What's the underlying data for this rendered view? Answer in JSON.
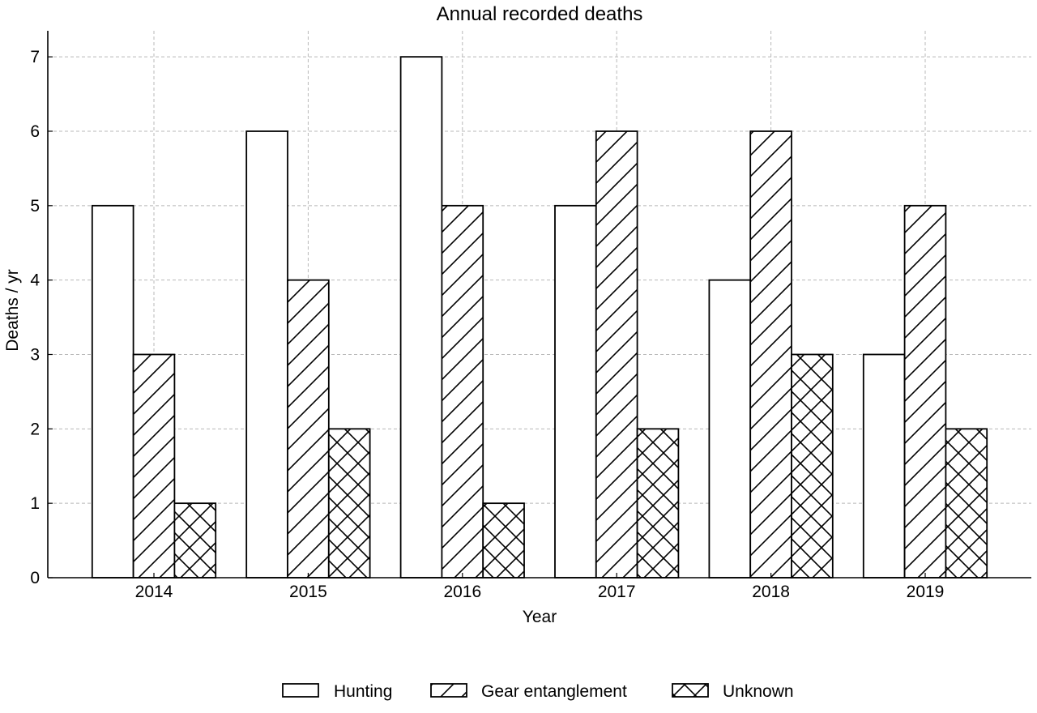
{
  "chart_data": {
    "type": "bar",
    "title": "Annual recorded deaths",
    "xlabel": "Year",
    "ylabel": "Deaths / yr",
    "categories": [
      "2014",
      "2015",
      "2016",
      "2017",
      "2018",
      "2019"
    ],
    "series": [
      {
        "name": "Hunting",
        "values": [
          5,
          6,
          7,
          5,
          4,
          3
        ],
        "pattern": "none"
      },
      {
        "name": "Gear entanglement",
        "values": [
          3,
          4,
          5,
          6,
          6,
          5
        ],
        "pattern": "diagonal"
      },
      {
        "name": "Unknown",
        "values": [
          1,
          2,
          1,
          2,
          3,
          2
        ],
        "pattern": "crosshatch"
      }
    ],
    "ylim": [
      0,
      7.35
    ],
    "yticks": [
      0,
      1,
      2,
      3,
      4,
      5,
      6,
      7
    ],
    "grid": true,
    "legend_position": "bottom-center",
    "colors": {
      "fill": "#ffffff",
      "edge": "#000000",
      "grid": "#b8b8b8"
    }
  }
}
